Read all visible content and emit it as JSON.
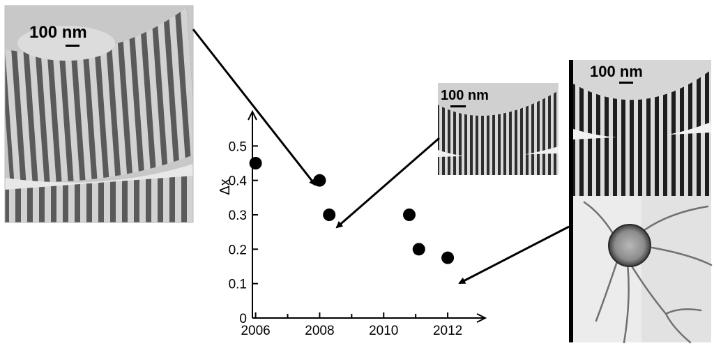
{
  "chart_data": {
    "type": "scatter",
    "title": "",
    "xlabel": "",
    "ylabel": "Δx",
    "xlim": [
      2005.9,
      2013.0
    ],
    "ylim": [
      0,
      0.6
    ],
    "x_ticks": [
      "2006",
      "2008",
      "2010",
      "2012"
    ],
    "y_ticks": [
      "0",
      "0.1",
      "0.2",
      "0.3",
      "0.4",
      "0.5"
    ],
    "points": [
      {
        "x": 2006.0,
        "y": 0.45
      },
      {
        "x": 2008.0,
        "y": 0.4
      },
      {
        "x": 2008.3,
        "y": 0.3
      },
      {
        "x": 2010.8,
        "y": 0.3
      },
      {
        "x": 2011.1,
        "y": 0.2
      },
      {
        "x": 2012.0,
        "y": 0.175
      }
    ],
    "grid": false,
    "legend": "none",
    "marker_color": "#000000"
  },
  "insets": [
    {
      "scale_label": "100 nm"
    },
    {
      "scale_label": "100 nm"
    },
    {
      "scale_label": "100 nm"
    }
  ]
}
